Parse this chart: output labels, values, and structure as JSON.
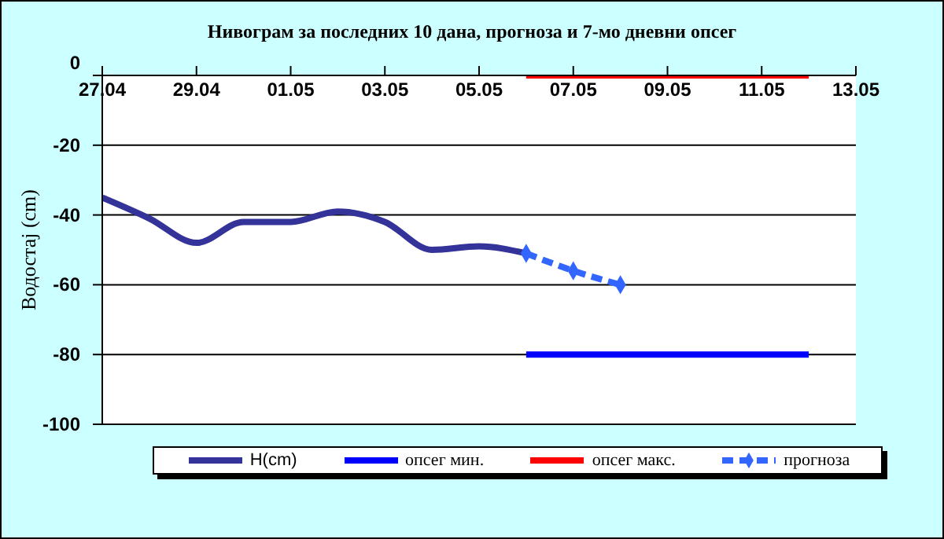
{
  "chart_data": {
    "type": "line",
    "title": "Нивограм за последних 10 дана, прогноза и 7-мо дневни опсег",
    "ylabel": "Водостај (cm)",
    "xlim": [
      "--04-27",
      "--05-13"
    ],
    "xticks": [
      {
        "value": "--04-27",
        "label": "27.04"
      },
      {
        "value": "--04-29",
        "label": "29.04"
      },
      {
        "value": "--05-01",
        "label": "01.05"
      },
      {
        "value": "--05-03",
        "label": "03.05"
      },
      {
        "value": "--05-05",
        "label": "05.05"
      },
      {
        "value": "--05-07",
        "label": "07.05"
      },
      {
        "value": "--05-09",
        "label": "09.05"
      },
      {
        "value": "--05-11",
        "label": "11.05"
      },
      {
        "value": "--05-13",
        "label": "13.05"
      }
    ],
    "ylim": [
      -100,
      0
    ],
    "yticks": [
      0,
      -20,
      -40,
      -60,
      -80,
      -100
    ],
    "grid": "y",
    "legend": "bottom",
    "marker": "none",
    "series": [
      {
        "name": "H(cm)",
        "color": "#333399",
        "x": [
          "--04-27",
          "--04-28",
          "--04-29",
          "--04-30",
          "--05-01",
          "--05-02",
          "--05-03",
          "--05-04",
          "--05-05",
          "--05-06"
        ],
        "values": [
          -35,
          -41,
          -48,
          -42,
          -42,
          -39,
          -42,
          -50,
          -49,
          -51
        ]
      },
      {
        "name": "опсег мин.",
        "color": "#0000ff",
        "x": [
          "--05-06",
          "--05-12"
        ],
        "values": [
          -80,
          -80
        ]
      },
      {
        "name": "опсег макс.",
        "color": "#ff0000",
        "x": [
          "--05-06",
          "--05-12"
        ],
        "values": [
          0,
          0
        ]
      },
      {
        "name": "прогноза",
        "color": "#3366ff",
        "x": [
          "--05-06",
          "--05-07",
          "--05-08"
        ],
        "values": [
          -51,
          -56,
          -60
        ],
        "marker": "diamond",
        "line_style": "dashed"
      }
    ]
  }
}
